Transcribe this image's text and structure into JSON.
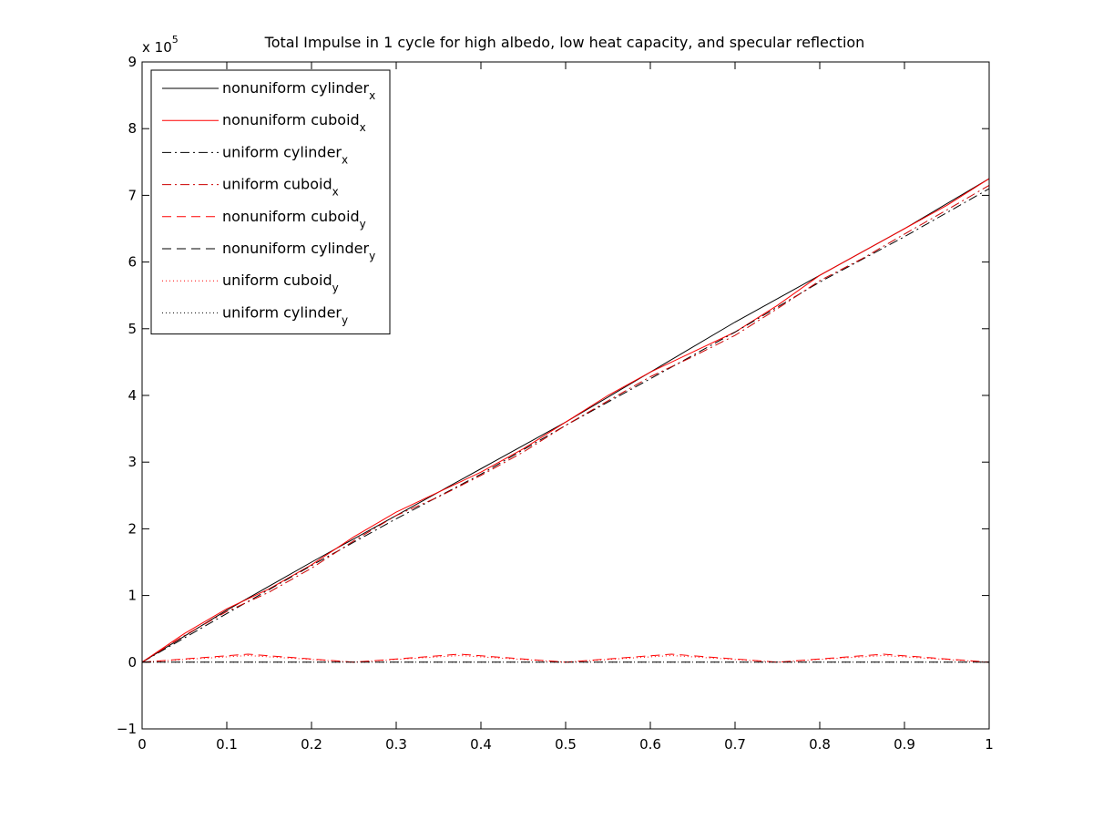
{
  "chart_data": {
    "type": "line",
    "title": "Total Impulse in 1 cycle for high albedo, low  heat capacity, and specular reflection",
    "y_exponent": {
      "prefix": "x 10",
      "power": "5"
    },
    "xlim": [
      0,
      1
    ],
    "ylim": [
      -1,
      9
    ],
    "x_ticks": [
      0,
      0.1,
      0.2,
      0.3,
      0.4,
      0.5,
      0.6,
      0.7,
      0.8,
      0.9,
      1
    ],
    "x_tick_labels": [
      "0",
      "0.1",
      "0.2",
      "0.3",
      "0.4",
      "0.5",
      "0.6",
      "0.7",
      "0.8",
      "0.9",
      "1"
    ],
    "y_ticks": [
      -1,
      0,
      1,
      2,
      3,
      4,
      5,
      6,
      7,
      8,
      9
    ],
    "y_tick_labels": [
      "−1",
      "0",
      "1",
      "2",
      "3",
      "4",
      "5",
      "6",
      "7",
      "8",
      "9"
    ],
    "grid": false,
    "legend_position": "top-left",
    "series": [
      {
        "name": "nonuniform cylinder",
        "sub": "x",
        "color": "#000000",
        "style": "solid",
        "x": [
          0,
          0.1,
          0.2,
          0.3,
          0.4,
          0.5,
          0.6,
          0.7,
          0.8,
          0.9,
          1
        ],
        "y": [
          0,
          0.78,
          1.5,
          2.2,
          2.9,
          3.6,
          4.35,
          5.1,
          5.8,
          6.5,
          7.25
        ]
      },
      {
        "name": "nonuniform cuboid",
        "sub": "x",
        "color": "#ff0000",
        "style": "solid",
        "x": [
          0,
          0.05,
          0.1,
          0.15,
          0.2,
          0.25,
          0.3,
          0.35,
          0.4,
          0.45,
          0.5,
          0.55,
          0.6,
          0.65,
          0.7,
          0.75,
          0.8,
          0.85,
          0.9,
          0.95,
          1
        ],
        "y": [
          0,
          0.43,
          0.8,
          1.1,
          1.46,
          1.88,
          2.25,
          2.55,
          2.85,
          3.2,
          3.6,
          4.0,
          4.35,
          4.65,
          4.95,
          5.35,
          5.8,
          6.15,
          6.5,
          6.85,
          7.25
        ]
      },
      {
        "name": "uniform cylinder",
        "sub": "x",
        "color": "#000000",
        "style": "dashdot",
        "x": [
          0,
          0.1,
          0.2,
          0.3,
          0.4,
          0.5,
          0.6,
          0.7,
          0.8,
          0.9,
          1
        ],
        "y": [
          0,
          0.73,
          1.45,
          2.15,
          2.82,
          3.55,
          4.25,
          4.95,
          5.7,
          6.38,
          7.1
        ]
      },
      {
        "name": "uniform cuboid",
        "sub": "x",
        "color": "#cc0000",
        "style": "dashdot",
        "x": [
          0,
          0.05,
          0.1,
          0.15,
          0.2,
          0.25,
          0.3,
          0.35,
          0.4,
          0.45,
          0.5,
          0.55,
          0.6,
          0.65,
          0.7,
          0.75,
          0.8,
          0.85,
          0.9,
          0.95,
          1
        ],
        "y": [
          0,
          0.4,
          0.76,
          1.05,
          1.41,
          1.82,
          2.2,
          2.48,
          2.8,
          3.15,
          3.55,
          3.92,
          4.28,
          4.58,
          4.9,
          5.3,
          5.72,
          6.05,
          6.42,
          6.78,
          7.15
        ]
      },
      {
        "name": "nonuniform cuboid",
        "sub": "y",
        "color": "#ff0000",
        "style": "dashed",
        "x": [
          0,
          0.0625,
          0.125,
          0.1875,
          0.25,
          0.3125,
          0.375,
          0.4375,
          0.5,
          0.5625,
          0.625,
          0.6875,
          0.75,
          0.8125,
          0.875,
          0.9375,
          1
        ],
        "y": [
          0,
          0.06,
          0.12,
          0.06,
          0,
          0.06,
          0.12,
          0.06,
          0,
          0.06,
          0.12,
          0.06,
          0,
          0.06,
          0.12,
          0.06,
          0
        ]
      },
      {
        "name": "nonuniform cylinder",
        "sub": "y",
        "color": "#000000",
        "style": "dashed",
        "x": [
          0,
          1
        ],
        "y": [
          0,
          0
        ]
      },
      {
        "name": "uniform cuboid",
        "sub": "y",
        "color": "#ff0000",
        "style": "dotted",
        "x": [
          0,
          0.0625,
          0.125,
          0.1875,
          0.25,
          0.3125,
          0.375,
          0.4375,
          0.5,
          0.5625,
          0.625,
          0.6875,
          0.75,
          0.8125,
          0.875,
          0.9375,
          1
        ],
        "y": [
          0,
          0.05,
          0.1,
          0.05,
          0,
          0.05,
          0.1,
          0.05,
          0,
          0.05,
          0.1,
          0.05,
          0,
          0.05,
          0.1,
          0.05,
          0
        ]
      },
      {
        "name": "uniform cylinder",
        "sub": "y",
        "color": "#000000",
        "style": "dotted",
        "x": [
          0,
          1
        ],
        "y": [
          0,
          0
        ]
      }
    ]
  }
}
